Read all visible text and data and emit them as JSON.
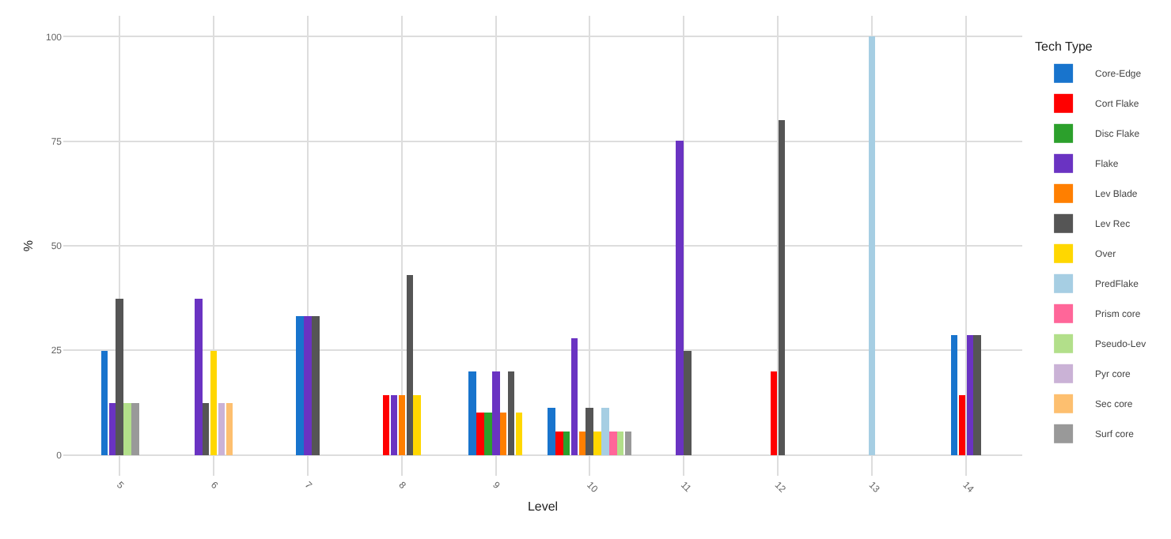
{
  "chart_data": {
    "type": "bar",
    "xlabel": "Level",
    "ylabel": "%",
    "legend_title": "Tech Type",
    "categories": [
      "5",
      "6",
      "7",
      "8",
      "9",
      "10",
      "11",
      "12",
      "13",
      "14"
    ],
    "ylim": [
      -5,
      105
    ],
    "yticks": [
      0,
      25,
      50,
      75,
      100
    ],
    "grid": true,
    "legend": "right",
    "series": [
      {
        "name": "Core-Edge",
        "color": "#1874cd",
        "values": [
          25,
          null,
          33.3,
          null,
          20,
          11.1,
          null,
          null,
          null,
          28.6
        ]
      },
      {
        "name": "Cort Flake",
        "color": "#ff0000",
        "values": [
          null,
          null,
          null,
          14.3,
          10,
          5.6,
          null,
          20,
          null,
          14.3
        ]
      },
      {
        "name": "Disc Flake",
        "color": "#2ca02c",
        "values": [
          null,
          null,
          null,
          null,
          10,
          5.6,
          null,
          null,
          null,
          null
        ]
      },
      {
        "name": "Flake",
        "color": "#6a33c2",
        "values": [
          12.5,
          37.5,
          33.3,
          14.3,
          20,
          27.8,
          75,
          null,
          null,
          28.6
        ]
      },
      {
        "name": "Lev Blade",
        "color": "#ff7f00",
        "values": [
          null,
          null,
          null,
          14.3,
          10,
          5.6,
          null,
          null,
          null,
          null
        ]
      },
      {
        "name": "Lev Rec",
        "color": "#555555",
        "values": [
          37.5,
          12.5,
          33.3,
          42.9,
          20,
          11.1,
          25,
          80,
          null,
          28.6
        ]
      },
      {
        "name": "Over",
        "color": "#ffd700",
        "values": [
          null,
          25,
          null,
          14.3,
          10,
          5.6,
          null,
          null,
          null,
          null
        ]
      },
      {
        "name": "PredFlake",
        "color": "#a6cee3",
        "values": [
          null,
          null,
          null,
          null,
          null,
          11.1,
          null,
          null,
          100,
          null
        ]
      },
      {
        "name": "Prism core",
        "color": "#ff6699",
        "values": [
          null,
          null,
          null,
          null,
          null,
          5.6,
          null,
          null,
          null,
          null
        ]
      },
      {
        "name": "Pseudo-Lev",
        "color": "#b2df8a",
        "values": [
          12.5,
          null,
          null,
          null,
          null,
          5.6,
          null,
          null,
          null,
          null
        ]
      },
      {
        "name": "Pyr core",
        "color": "#cab2d6",
        "values": [
          null,
          12.5,
          null,
          null,
          null,
          null,
          null,
          null,
          null,
          null
        ]
      },
      {
        "name": "Sec core",
        "color": "#fdbf6f",
        "values": [
          null,
          12.5,
          null,
          null,
          null,
          null,
          null,
          null,
          null,
          null
        ]
      },
      {
        "name": "Surf core",
        "color": "#999999",
        "values": [
          12.5,
          null,
          null,
          null,
          null,
          5.6,
          null,
          null,
          null,
          null
        ]
      }
    ]
  }
}
